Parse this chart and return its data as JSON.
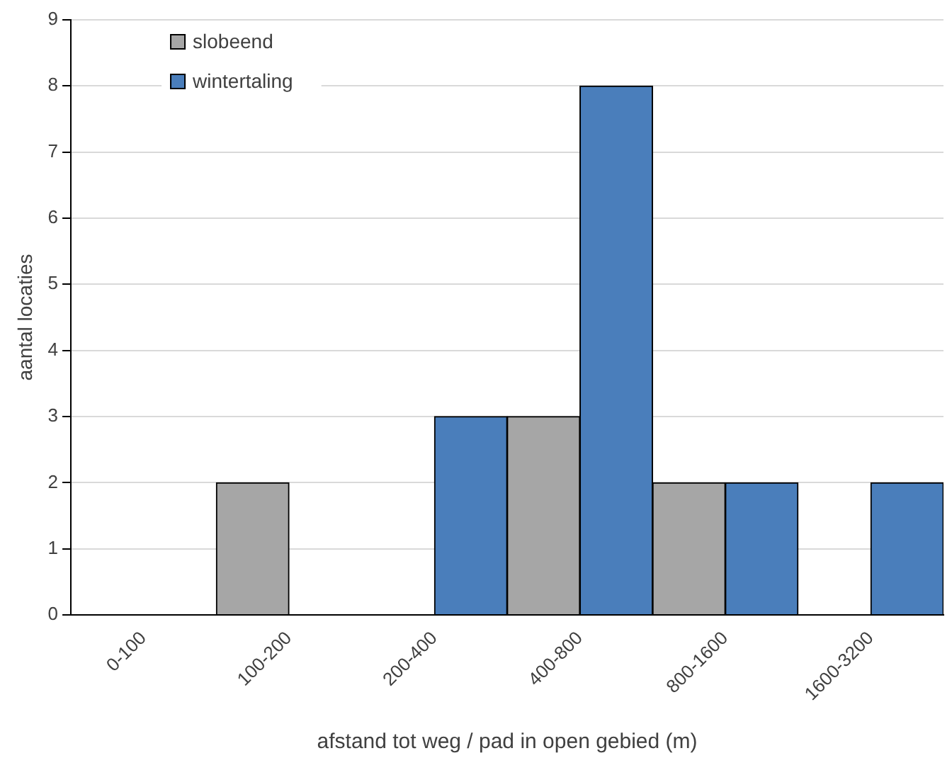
{
  "chart_data": {
    "type": "bar",
    "xlabel": "afstand tot weg / pad in open gebied (m)",
    "ylabel": "aantal locaties",
    "categories": [
      "0-100",
      "100-200",
      "200-400",
      "400-800",
      "800-1600",
      "1600-3200"
    ],
    "series": [
      {
        "name": "slobeend",
        "color": "#a6a6a6",
        "values": [
          0,
          2,
          0,
          3,
          2,
          0
        ]
      },
      {
        "name": "wintertaling",
        "color": "#4a7ebb",
        "values": [
          0,
          0,
          3,
          8,
          2,
          2
        ]
      }
    ],
    "ylim": [
      0,
      9
    ],
    "yticks": [
      0,
      1,
      2,
      3,
      4,
      5,
      6,
      7,
      8,
      9
    ],
    "grid": "y",
    "legend": "top left"
  }
}
